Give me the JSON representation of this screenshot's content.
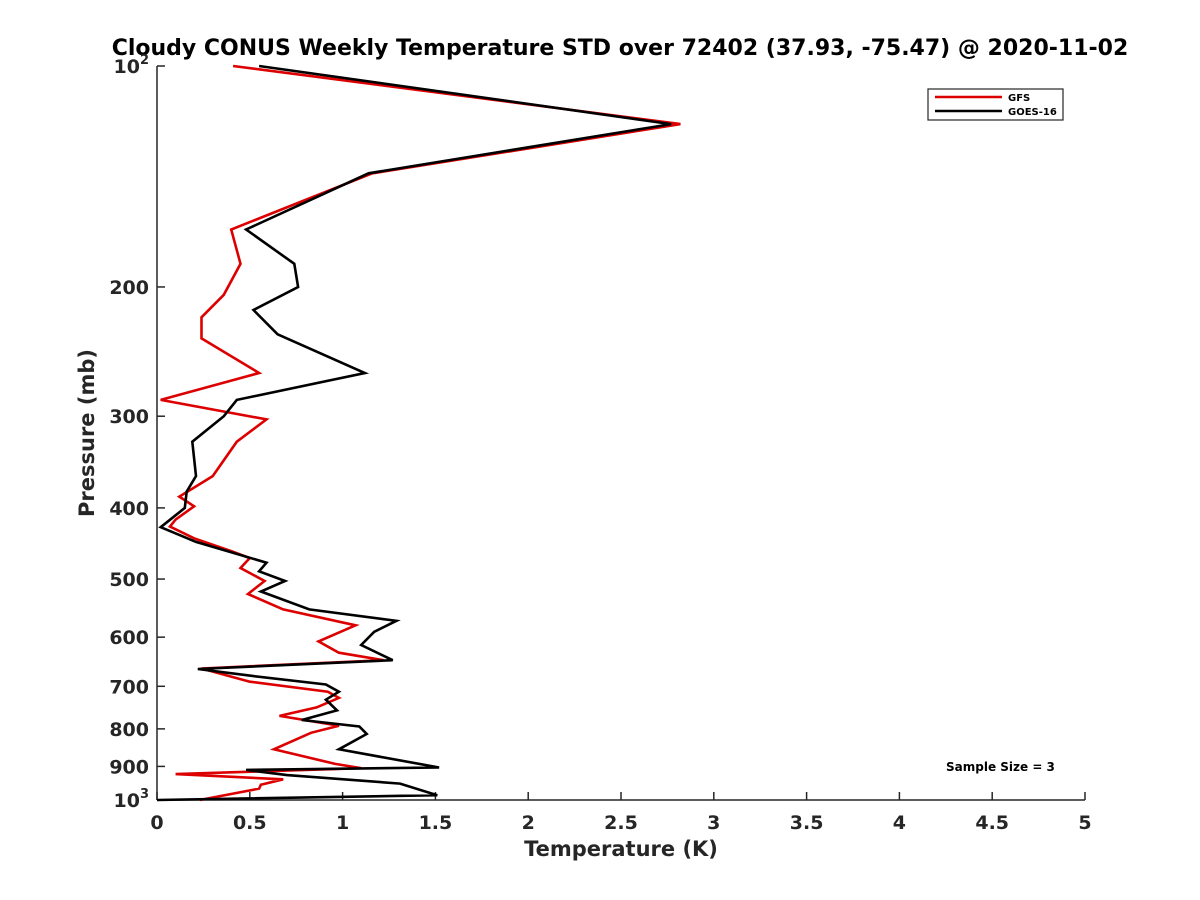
{
  "chart_data": {
    "type": "line",
    "title": "Cloudy CONUS Weekly Temperature STD over 72402 (37.93, -75.47) @ 2020-11-02",
    "xlabel": "Temperature (K)",
    "ylabel": "Pressure (mb)",
    "xlim": [
      0,
      5
    ],
    "ylim": [
      100,
      1000
    ],
    "y_scale": "log",
    "y_reversed": true,
    "x_ticks": [
      0,
      0.5,
      1,
      1.5,
      2,
      2.5,
      3,
      3.5,
      4,
      4.5,
      5
    ],
    "x_tick_labels": [
      "0",
      "0.5",
      "1",
      "1.5",
      "2",
      "2.5",
      "3",
      "3.5",
      "4",
      "4.5",
      "5"
    ],
    "y_ticks": [
      {
        "value": 100,
        "base": "10",
        "exp": "2"
      },
      {
        "value": 200,
        "label": "200"
      },
      {
        "value": 300,
        "label": "300"
      },
      {
        "value": 400,
        "label": "400"
      },
      {
        "value": 500,
        "label": "500"
      },
      {
        "value": 600,
        "label": "600"
      },
      {
        "value": 700,
        "label": "700"
      },
      {
        "value": 800,
        "label": "800"
      },
      {
        "value": 900,
        "label": "900"
      },
      {
        "value": 1000,
        "base": "10",
        "exp": "3"
      }
    ],
    "grid": false,
    "legend_position": "top-right",
    "annotation": "Sample Size = 3",
    "series": [
      {
        "name": "GFS",
        "color": "#dd0000",
        "points": [
          [
            0.41,
            100
          ],
          [
            2.82,
            120
          ],
          [
            1.16,
            140
          ],
          [
            0.4,
            167
          ],
          [
            0.45,
            186
          ],
          [
            0.36,
            205
          ],
          [
            0.24,
            220
          ],
          [
            0.24,
            235
          ],
          [
            0.55,
            262
          ],
          [
            0.02,
            285
          ],
          [
            0.59,
            303
          ],
          [
            0.43,
            325
          ],
          [
            0.3,
            362
          ],
          [
            0.12,
            386
          ],
          [
            0.2,
            398
          ],
          [
            0.1,
            415
          ],
          [
            0.07,
            424
          ],
          [
            0.2,
            440
          ],
          [
            0.4,
            458
          ],
          [
            0.5,
            468
          ],
          [
            0.45,
            483
          ],
          [
            0.58,
            503
          ],
          [
            0.49,
            524
          ],
          [
            0.68,
            550
          ],
          [
            1.07,
            578
          ],
          [
            0.87,
            608
          ],
          [
            0.98,
            630
          ],
          [
            1.22,
            645
          ],
          [
            0.24,
            662
          ],
          [
            0.5,
            690
          ],
          [
            0.92,
            712
          ],
          [
            0.98,
            726
          ],
          [
            0.86,
            748
          ],
          [
            0.66,
            768
          ],
          [
            0.98,
            792
          ],
          [
            0.83,
            810
          ],
          [
            0.63,
            853
          ],
          [
            0.96,
            893
          ],
          [
            1.1,
            905
          ],
          [
            0.1,
            922
          ],
          [
            0.68,
            937
          ],
          [
            0.56,
            953
          ],
          [
            0.55,
            965
          ],
          [
            0.23,
            1000
          ]
        ]
      },
      {
        "name": "GOES-16",
        "color": "#000000",
        "points": [
          [
            0.55,
            100
          ],
          [
            2.77,
            120
          ],
          [
            1.14,
            140
          ],
          [
            0.48,
            167
          ],
          [
            0.74,
            186
          ],
          [
            0.76,
            200
          ],
          [
            0.52,
            215
          ],
          [
            0.65,
            232
          ],
          [
            1.12,
            262
          ],
          [
            0.43,
            285
          ],
          [
            0.36,
            300
          ],
          [
            0.19,
            325
          ],
          [
            0.21,
            362
          ],
          [
            0.16,
            380
          ],
          [
            0.15,
            400
          ],
          [
            0.02,
            425
          ],
          [
            0.21,
            445
          ],
          [
            0.59,
            475
          ],
          [
            0.55,
            488
          ],
          [
            0.69,
            503
          ],
          [
            0.56,
            520
          ],
          [
            0.82,
            550
          ],
          [
            1.29,
            570
          ],
          [
            1.17,
            590
          ],
          [
            1.1,
            615
          ],
          [
            1.27,
            645
          ],
          [
            0.22,
            663
          ],
          [
            0.52,
            678
          ],
          [
            0.91,
            696
          ],
          [
            0.98,
            712
          ],
          [
            0.91,
            730
          ],
          [
            0.97,
            755
          ],
          [
            0.78,
            778
          ],
          [
            1.09,
            794
          ],
          [
            1.13,
            813
          ],
          [
            0.98,
            853
          ],
          [
            1.52,
            903
          ],
          [
            0.48,
            910
          ],
          [
            0.7,
            925
          ],
          [
            1.31,
            950
          ],
          [
            1.51,
            985
          ],
          [
            0.0,
            1000
          ]
        ]
      }
    ]
  }
}
